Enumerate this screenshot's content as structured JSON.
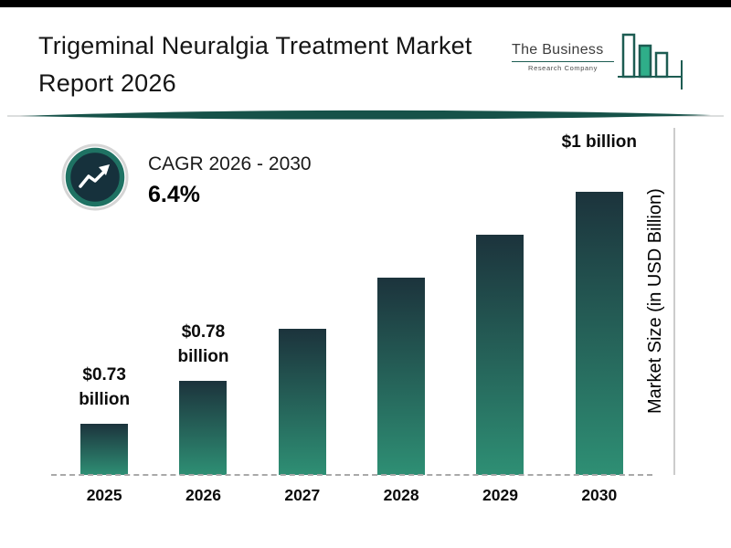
{
  "header": {
    "title_line1": "Trigeminal Neuralgia Treatment Market",
    "title_line2": "Report 2026",
    "logo": {
      "line1": "The Business",
      "line2": "Research Company"
    }
  },
  "cagr": {
    "label": "CAGR 2026 - 2030",
    "value": "6.4%"
  },
  "chart_data": {
    "type": "bar",
    "title": "Trigeminal Neuralgia Treatment Market Report 2026",
    "categories": [
      "2025",
      "2026",
      "2027",
      "2028",
      "2029",
      "2030"
    ],
    "values": [
      0.73,
      0.78,
      0.84,
      0.9,
      0.95,
      1.0
    ],
    "bar_labels": [
      {
        "category": "2025",
        "lines": [
          "$0.73",
          "billion"
        ],
        "gap": 12
      },
      {
        "category": "2026",
        "lines": [
          "$0.78",
          "billion"
        ],
        "gap": 12
      },
      {
        "category": "2030",
        "lines": [
          "$1 billion"
        ],
        "gap": 40
      }
    ],
    "xlabel": "",
    "ylabel": "Market Size (in USD Billion)",
    "ylim": [
      0.67,
      1.0
    ],
    "grid": false,
    "legend": false,
    "colors": {
      "bar_top": "#1c333c",
      "bar_bottom": "#2e8f74",
      "accent_teal": "#1f7263",
      "swoosh": "#165249",
      "baseline": "#a9a9a9"
    }
  }
}
